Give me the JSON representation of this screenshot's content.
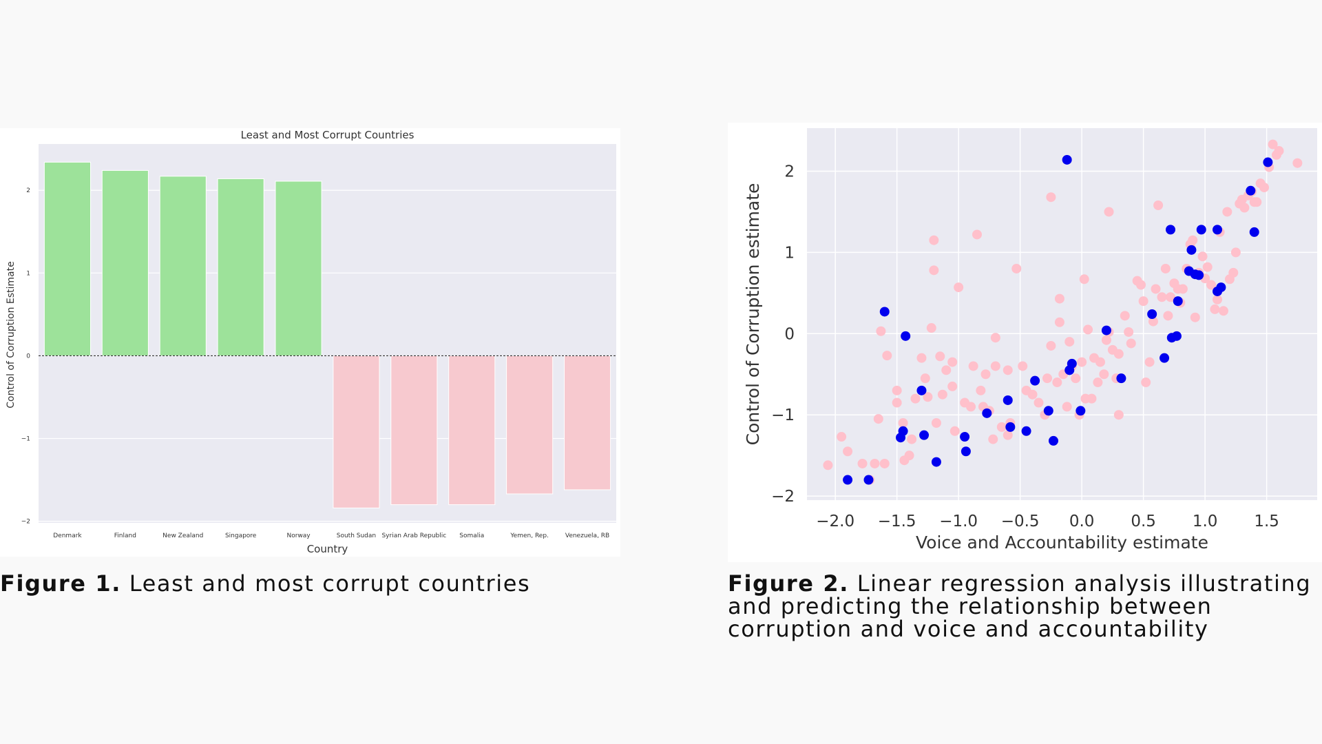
{
  "figure1": {
    "caption_label": "Figure 1.",
    "caption_text": " Least and most corrupt countries"
  },
  "figure2": {
    "caption_label": "Figure 2.",
    "caption_text": " Linear regression analysis illustrating and predicting the relationship between corruption and voice and accountability"
  },
  "colors": {
    "plot_bg": "#eaeaf2",
    "grid": "#ffffff",
    "least_corrupt": "#9de29a",
    "most_corrupt": "#f7c9cf",
    "scatter_pink": "#ffc0cb",
    "scatter_blue": "#0000ee"
  },
  "chart_data": [
    {
      "type": "bar",
      "title": "Least and Most Corrupt Countries",
      "xlabel": "Country",
      "ylabel": "Control of Corruption Estimate",
      "categories": [
        "Denmark",
        "Finland",
        "New Zealand",
        "Singapore",
        "Norway",
        "South Sudan",
        "Syrian Arab Republic",
        "Somalia",
        "Yemen, Rep.",
        "Venezuela, RB"
      ],
      "values": [
        2.34,
        2.24,
        2.17,
        2.14,
        2.11,
        -1.84,
        -1.8,
        -1.8,
        -1.67,
        -1.62
      ],
      "bar_colors": [
        "least_corrupt",
        "least_corrupt",
        "least_corrupt",
        "least_corrupt",
        "least_corrupt",
        "most_corrupt",
        "most_corrupt",
        "most_corrupt",
        "most_corrupt",
        "most_corrupt"
      ],
      "ylim": [
        -2.02,
        2.56
      ],
      "yticks": [
        -2,
        -1,
        0,
        1,
        2
      ],
      "ytick_labels": [
        "−2",
        "−1",
        "0",
        "1",
        "2"
      ],
      "reference_line": 0,
      "grid": true
    },
    {
      "type": "scatter",
      "xlabel": "Voice and Accountability estimate",
      "ylabel": "Control of Corruption estimate",
      "xlim": [
        -2.23,
        1.91
      ],
      "ylim": [
        -2.05,
        2.53
      ],
      "xticks": [
        -2.0,
        -1.5,
        -1.0,
        -0.5,
        0.0,
        0.5,
        1.0,
        1.5
      ],
      "xtick_labels": [
        "−2.0",
        "−1.5",
        "−1.0",
        "−0.5",
        "0.0",
        "0.5",
        "1.0",
        "1.5"
      ],
      "yticks": [
        -2,
        -1,
        0,
        1,
        2
      ],
      "ytick_labels": [
        "−2",
        "−1",
        "0",
        "1",
        "2"
      ],
      "grid": true,
      "series": [
        {
          "color": "scatter_pink",
          "points": [
            [
              -2.06,
              -1.62
            ],
            [
              -1.95,
              -1.27
            ],
            [
              -1.9,
              -1.45
            ],
            [
              -1.78,
              -1.6
            ],
            [
              -1.72,
              -1.8
            ],
            [
              -1.68,
              -1.6
            ],
            [
              -1.6,
              -1.6
            ],
            [
              -1.65,
              -1.05
            ],
            [
              -1.58,
              -0.27
            ],
            [
              -1.63,
              0.03
            ],
            [
              -1.5,
              -0.7
            ],
            [
              -1.5,
              -0.85
            ],
            [
              -1.45,
              -1.1
            ],
            [
              -1.44,
              -1.56
            ],
            [
              -1.4,
              -1.5
            ],
            [
              -1.38,
              -1.3
            ],
            [
              -1.35,
              -0.8
            ],
            [
              -1.3,
              -0.3
            ],
            [
              -1.27,
              -0.55
            ],
            [
              -1.25,
              -0.78
            ],
            [
              -1.22,
              0.07
            ],
            [
              -1.2,
              0.78
            ],
            [
              -1.2,
              1.15
            ],
            [
              -1.18,
              -1.1
            ],
            [
              -1.15,
              -0.28
            ],
            [
              -1.13,
              -0.75
            ],
            [
              -1.1,
              -0.45
            ],
            [
              -1.05,
              -0.65
            ],
            [
              -1.03,
              -1.2
            ],
            [
              -1.0,
              0.57
            ],
            [
              -0.95,
              -0.85
            ],
            [
              -0.9,
              -0.9
            ],
            [
              -0.88,
              -0.4
            ],
            [
              -0.85,
              1.22
            ],
            [
              -0.82,
              -0.7
            ],
            [
              -0.8,
              -0.9
            ],
            [
              -0.78,
              -0.5
            ],
            [
              -0.75,
              -0.95
            ],
            [
              -0.72,
              -1.3
            ],
            [
              -0.7,
              -0.4
            ],
            [
              -0.7,
              -0.05
            ],
            [
              -0.65,
              -1.15
            ],
            [
              -0.6,
              -0.45
            ],
            [
              -0.58,
              -1.1
            ],
            [
              -0.53,
              0.8
            ],
            [
              -0.48,
              -0.4
            ],
            [
              -0.45,
              -0.7
            ],
            [
              -0.4,
              -0.75
            ],
            [
              -0.35,
              -0.85
            ],
            [
              -0.3,
              -1.0
            ],
            [
              -0.28,
              -0.55
            ],
            [
              -0.25,
              -0.15
            ],
            [
              -0.25,
              1.68
            ],
            [
              -0.2,
              -0.6
            ],
            [
              -0.18,
              0.43
            ],
            [
              -0.18,
              0.14
            ],
            [
              -0.15,
              -0.5
            ],
            [
              -0.12,
              -0.9
            ],
            [
              -0.1,
              -0.1
            ],
            [
              -0.08,
              -0.4
            ],
            [
              -0.05,
              -0.55
            ],
            [
              -0.02,
              -1.0
            ],
            [
              0.0,
              -0.35
            ],
            [
              0.02,
              0.67
            ],
            [
              0.03,
              -0.8
            ],
            [
              0.05,
              0.05
            ],
            [
              0.08,
              -0.8
            ],
            [
              0.1,
              -0.3
            ],
            [
              0.13,
              -0.6
            ],
            [
              0.15,
              -0.35
            ],
            [
              0.18,
              -0.5
            ],
            [
              0.2,
              -0.08
            ],
            [
              0.22,
              0.02
            ],
            [
              0.22,
              1.5
            ],
            [
              0.25,
              -0.2
            ],
            [
              0.28,
              -0.55
            ],
            [
              0.3,
              -0.25
            ],
            [
              0.35,
              0.22
            ],
            [
              0.38,
              0.02
            ],
            [
              0.4,
              -0.12
            ],
            [
              0.45,
              0.65
            ],
            [
              0.48,
              0.6
            ],
            [
              0.5,
              0.4
            ],
            [
              0.52,
              -0.6
            ],
            [
              0.55,
              -0.35
            ],
            [
              0.58,
              0.15
            ],
            [
              0.6,
              0.55
            ],
            [
              0.62,
              1.58
            ],
            [
              0.65,
              0.45
            ],
            [
              0.68,
              0.8
            ],
            [
              0.7,
              0.22
            ],
            [
              0.72,
              0.45
            ],
            [
              0.75,
              0.62
            ],
            [
              0.78,
              0.55
            ],
            [
              0.8,
              0.38
            ],
            [
              0.82,
              0.55
            ],
            [
              0.85,
              0.8
            ],
            [
              0.88,
              1.1
            ],
            [
              0.9,
              1.15
            ],
            [
              0.92,
              0.2
            ],
            [
              0.95,
              0.75
            ],
            [
              0.98,
              0.95
            ],
            [
              1.0,
              0.68
            ],
            [
              1.02,
              0.82
            ],
            [
              1.05,
              0.6
            ],
            [
              1.08,
              0.3
            ],
            [
              1.1,
              0.42
            ],
            [
              1.12,
              1.25
            ],
            [
              1.15,
              0.28
            ],
            [
              1.18,
              1.5
            ],
            [
              1.2,
              0.67
            ],
            [
              1.23,
              0.75
            ],
            [
              1.25,
              1.0
            ],
            [
              1.28,
              1.6
            ],
            [
              1.3,
              1.65
            ],
            [
              1.32,
              1.55
            ],
            [
              1.35,
              1.7
            ],
            [
              1.38,
              1.75
            ],
            [
              1.4,
              1.62
            ],
            [
              1.42,
              1.62
            ],
            [
              1.45,
              1.85
            ],
            [
              1.48,
              1.8
            ],
            [
              1.52,
              2.05
            ],
            [
              1.55,
              2.33
            ],
            [
              1.58,
              2.2
            ],
            [
              1.6,
              2.25
            ],
            [
              1.75,
              2.1
            ],
            [
              -1.05,
              -0.35
            ],
            [
              -0.6,
              -1.25
            ],
            [
              0.3,
              -1.0
            ]
          ]
        },
        {
          "color": "scatter_blue",
          "points": [
            [
              -1.9,
              -1.8
            ],
            [
              -1.73,
              -1.8
            ],
            [
              -1.6,
              0.27
            ],
            [
              -1.47,
              -1.28
            ],
            [
              -1.45,
              -1.2
            ],
            [
              -1.43,
              -0.03
            ],
            [
              -1.3,
              -0.7
            ],
            [
              -1.28,
              -1.25
            ],
            [
              -1.18,
              -1.58
            ],
            [
              -0.95,
              -1.27
            ],
            [
              -0.94,
              -1.45
            ],
            [
              -0.77,
              -0.98
            ],
            [
              -0.6,
              -0.82
            ],
            [
              -0.58,
              -1.15
            ],
            [
              -0.45,
              -1.2
            ],
            [
              -0.38,
              -0.58
            ],
            [
              -0.27,
              -0.95
            ],
            [
              -0.23,
              -1.32
            ],
            [
              -0.12,
              2.14
            ],
            [
              -0.1,
              -0.45
            ],
            [
              -0.08,
              -0.37
            ],
            [
              -0.01,
              -0.95
            ],
            [
              0.2,
              0.04
            ],
            [
              0.32,
              -0.55
            ],
            [
              0.57,
              0.24
            ],
            [
              0.67,
              -0.3
            ],
            [
              0.72,
              1.28
            ],
            [
              0.73,
              -0.05
            ],
            [
              0.77,
              -0.03
            ],
            [
              0.78,
              0.4
            ],
            [
              0.87,
              0.77
            ],
            [
              0.89,
              1.03
            ],
            [
              0.92,
              0.73
            ],
            [
              0.95,
              0.72
            ],
            [
              0.97,
              1.28
            ],
            [
              1.1,
              1.28
            ],
            [
              1.1,
              0.52
            ],
            [
              1.13,
              0.57
            ],
            [
              1.37,
              1.76
            ],
            [
              1.4,
              1.25
            ],
            [
              1.51,
              2.11
            ]
          ]
        }
      ]
    }
  ]
}
